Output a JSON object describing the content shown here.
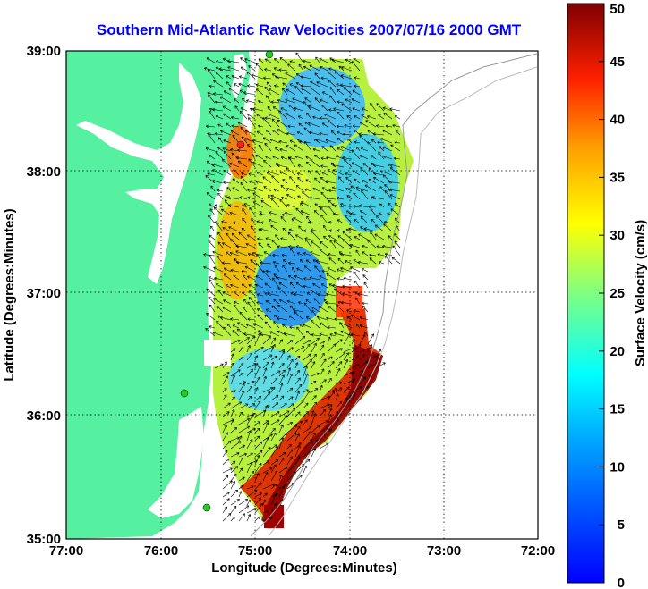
{
  "title": "Southern Mid-Atlantic Raw Velocities 2007/07/16 2000 GMT",
  "x_axis": {
    "label": "Longitude (Degrees:Minutes)",
    "ticks": [
      "77:00",
      "76:00",
      "75:00",
      "74:00",
      "73:00",
      "72:00"
    ]
  },
  "y_axis": {
    "label": "Latitude (Degrees:Minutes)",
    "ticks": [
      "39:00",
      "38:00",
      "37:00",
      "36:00",
      "35:00"
    ]
  },
  "colorbar": {
    "label": "Surface Velocity (cm/s)",
    "ticks": [
      "0",
      "5",
      "10",
      "15",
      "20",
      "25",
      "30",
      "35",
      "40",
      "45",
      "50"
    ],
    "colormap": "jet",
    "range": [
      0,
      50
    ]
  },
  "colors": {
    "land": "#55f0a0",
    "title": "#0000ff",
    "grid": "#000000",
    "station": "#22cc22",
    "station_alert": "#ff2222"
  }
}
